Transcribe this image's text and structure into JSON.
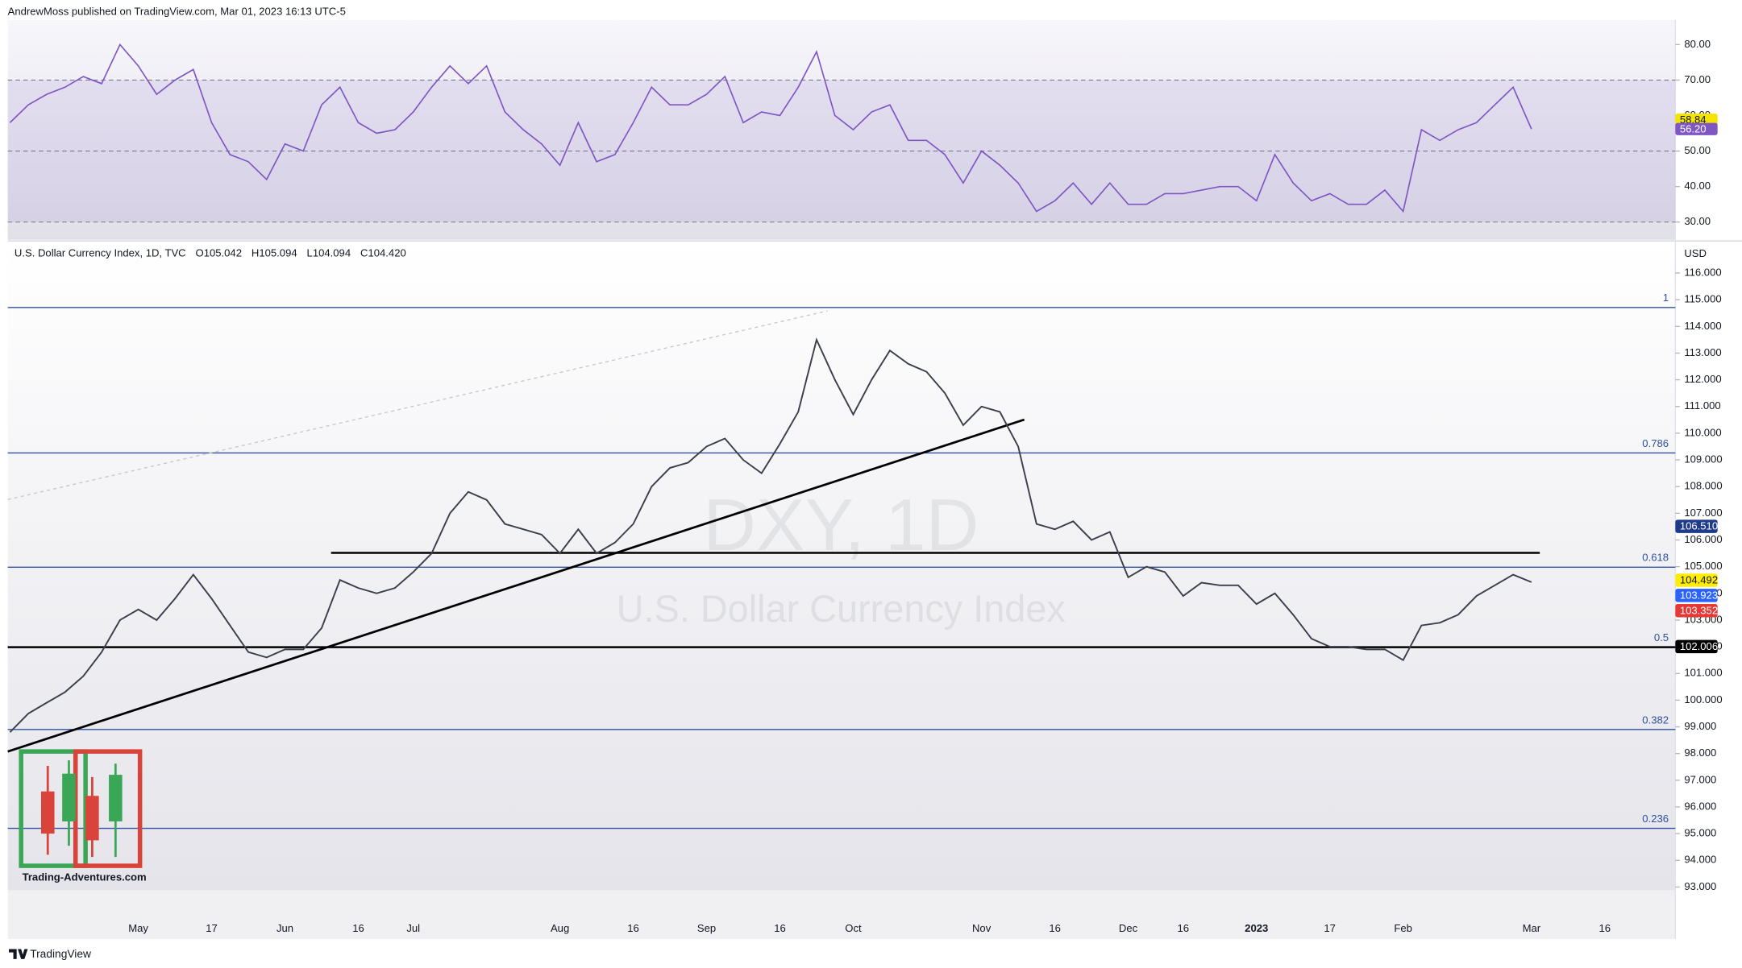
{
  "header": {
    "publisher": "AndrewMoss published on TradingView.com, Mar 01, 2023 16:13 UTC-5"
  },
  "footer": {
    "brand": "TradingView"
  },
  "chart_data": [
    {
      "type": "line",
      "color": "#7e57c2",
      "values": [
        58,
        63,
        66,
        68,
        71,
        69,
        80,
        74,
        66,
        70,
        73,
        58,
        49,
        47,
        42,
        52,
        50,
        63,
        68,
        58,
        55,
        56,
        61,
        68,
        74,
        69,
        74,
        61,
        56,
        52,
        46,
        58,
        47,
        49,
        58,
        68,
        63,
        63,
        66,
        71,
        58,
        61,
        60,
        68,
        78,
        60,
        56,
        61,
        63,
        53,
        53,
        49,
        41,
        50,
        46,
        41,
        33,
        36,
        41,
        35,
        41,
        35,
        35,
        38,
        38,
        39,
        40,
        40,
        36,
        49,
        41,
        36,
        38,
        35,
        35,
        39,
        33,
        56,
        53,
        56,
        58,
        63,
        68,
        56.2,
        null,
        null,
        null,
        null
      ],
      "ylim": [
        25,
        86.9
      ],
      "yticks": [
        {
          "value": 30,
          "label": "30.00"
        },
        {
          "value": 40,
          "label": "40.00"
        },
        {
          "value": 50,
          "label": "50.00"
        },
        {
          "value": 60,
          "label": "60.00"
        },
        {
          "value": 70,
          "label": "70.00"
        },
        {
          "value": 80,
          "label": "80.00"
        }
      ],
      "band": [
        30,
        70
      ],
      "levels": [
        70,
        50,
        30
      ],
      "tags": [
        {
          "value": 58.84,
          "label": "58.84",
          "color": "#f5e400",
          "text_color": "#131722"
        },
        {
          "value": 56.2,
          "label": "56.20",
          "color": "#7e57c2",
          "text_color": "#ffffff"
        }
      ]
    },
    {
      "type": "line",
      "title": "U.S. Dollar Currency Index, 1D, TVC",
      "ohlc": [
        "O105.042",
        "H105.094",
        "L104.094",
        "C104.420"
      ],
      "watermark": [
        "DXY, 1D",
        "U.S. Dollar Currency Index"
      ],
      "y_unit": "USD",
      "logo_text": "Trading-Adventures.com",
      "color": "#3a3f4b",
      "categories": [
        null,
        null,
        null,
        null,
        null,
        null,
        null,
        "May",
        null,
        null,
        null,
        "17",
        null,
        null,
        null,
        "Jun",
        null,
        null,
        null,
        "16",
        null,
        null,
        "Jul",
        null,
        null,
        null,
        null,
        null,
        null,
        null,
        "Aug",
        null,
        null,
        null,
        "16",
        null,
        null,
        null,
        "Sep",
        null,
        null,
        null,
        "16",
        null,
        null,
        null,
        "Oct",
        null,
        null,
        null,
        null,
        null,
        null,
        "Nov",
        null,
        null,
        null,
        "16",
        null,
        null,
        null,
        "Dec",
        null,
        null,
        "16",
        null,
        null,
        null,
        "2023",
        null,
        null,
        null,
        "17",
        null,
        null,
        null,
        "Feb",
        null,
        null,
        null,
        null,
        null,
        null,
        "Mar",
        null,
        null,
        null,
        "16"
      ],
      "values": [
        98.8,
        99.5,
        99.9,
        100.3,
        100.9,
        101.8,
        103.0,
        103.4,
        103.0,
        103.8,
        104.7,
        103.8,
        102.8,
        101.8,
        101.6,
        101.9,
        101.9,
        102.7,
        104.5,
        104.2,
        104.0,
        104.2,
        104.8,
        105.5,
        107.0,
        107.8,
        107.5,
        106.6,
        106.4,
        106.2,
        105.5,
        106.4,
        105.5,
        105.9,
        106.6,
        108.0,
        108.7,
        108.9,
        109.5,
        109.8,
        109.0,
        108.5,
        109.6,
        110.8,
        113.5,
        112.0,
        110.7,
        112.0,
        113.1,
        112.6,
        112.3,
        111.5,
        110.3,
        111.0,
        110.8,
        109.5,
        106.6,
        106.4,
        106.7,
        106.0,
        106.3,
        104.6,
        105.0,
        104.8,
        103.9,
        104.4,
        104.3,
        104.3,
        103.6,
        104.0,
        103.2,
        102.3,
        102.0,
        102.0,
        101.9,
        101.9,
        101.5,
        102.8,
        102.9,
        103.2,
        103.9,
        104.3,
        104.7,
        104.42,
        null,
        null,
        null,
        null
      ],
      "ylim": [
        92.88,
        117.16
      ],
      "yticks": [
        {
          "value": 93,
          "label": "93.000"
        },
        {
          "value": 94,
          "label": "94.000"
        },
        {
          "value": 95,
          "label": "95.000"
        },
        {
          "value": 96,
          "label": "96.000"
        },
        {
          "value": 97,
          "label": "97.000"
        },
        {
          "value": 98,
          "label": "98.000"
        },
        {
          "value": 99,
          "label": "99.000"
        },
        {
          "value": 100,
          "label": "100.000"
        },
        {
          "value": 101,
          "label": "101.000"
        },
        {
          "value": 102,
          "label": "102.000"
        },
        {
          "value": 103,
          "label": "103.000"
        },
        {
          "value": 104,
          "label": "104.000"
        },
        {
          "value": 105,
          "label": "105.000"
        },
        {
          "value": 106,
          "label": "106.000"
        },
        {
          "value": 107,
          "label": "107.000"
        },
        {
          "value": 108,
          "label": "108.000"
        },
        {
          "value": 109,
          "label": "109.000"
        },
        {
          "value": 110,
          "label": "110.000"
        },
        {
          "value": 111,
          "label": "111.000"
        },
        {
          "value": 112,
          "label": "112.000"
        },
        {
          "value": 113,
          "label": "113.000"
        },
        {
          "value": 114,
          "label": "114.000"
        },
        {
          "value": 115,
          "label": "115.000"
        },
        {
          "value": 116,
          "label": "116.000"
        }
      ],
      "fib_levels": [
        {
          "label": "1",
          "value": 114.71
        },
        {
          "label": "0.786",
          "value": 109.26
        },
        {
          "label": "0.618",
          "value": 104.98
        },
        {
          "label": "0.5",
          "value": 101.99
        },
        {
          "label": "0.382",
          "value": 98.9
        },
        {
          "label": "0.236",
          "value": 95.2
        }
      ],
      "fib_color": "#2f4f9f",
      "price_tags": [
        {
          "value": 106.51,
          "label": "106.510",
          "color": "#1e3a8a",
          "text_color": "#ffffff"
        },
        {
          "value": 104.492,
          "label": "104.492",
          "color": "#ffee00",
          "text_color": "#131722"
        },
        {
          "value": 103.923,
          "label": "103.923",
          "color": "#2962ff",
          "text_color": "#ffffff"
        },
        {
          "value": 103.352,
          "label": "103.352",
          "color": "#e53935",
          "text_color": "#ffffff"
        },
        {
          "value": 102.006,
          "label": "102.006",
          "color": "#000000",
          "text_color": "#ffffff"
        }
      ]
    }
  ]
}
